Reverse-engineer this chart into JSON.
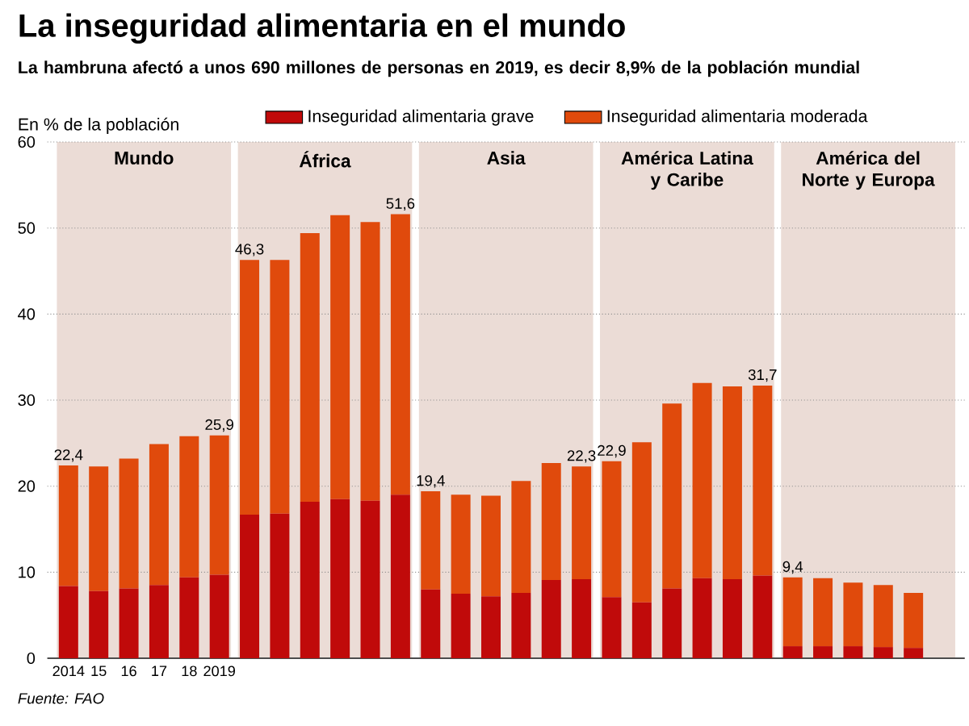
{
  "chart_data": {
    "type": "bar",
    "title": "La inseguridad alimentaria en el mundo",
    "subtitle": "La hambruna afectó a unos 690 millones de personas en 2019, es decir 8,9% de la población mundial",
    "ylabel": "En % de la población",
    "categories": [
      "2014",
      "15",
      "16",
      "17",
      "18",
      "2019",
      null,
      null,
      null,
      null,
      null,
      null,
      null,
      null,
      null,
      null,
      null,
      null,
      null,
      null,
      null,
      null,
      null,
      null,
      null,
      null,
      null,
      null,
      null,
      null
    ],
    "stacked": true,
    "ylim": [
      0,
      60
    ],
    "yticks": [
      0,
      10,
      20,
      30,
      40,
      50,
      60
    ],
    "grid": "y",
    "legend": "top",
    "series": [
      {
        "name": "Inseguridad alimentaria grave",
        "color": "#c00a0a",
        "values": [
          8.4,
          7.8,
          8.1,
          8.5,
          9.4,
          9.7,
          16.7,
          16.8,
          18.2,
          18.5,
          18.3,
          19.0,
          8.0,
          7.5,
          7.2,
          7.6,
          9.1,
          9.2,
          7.1,
          6.5,
          8.1,
          9.3,
          9.2,
          9.6,
          1.4,
          1.4,
          1.4,
          1.3,
          1.2,
          null
        ]
      },
      {
        "name": "Inseguridad alimentaria moderada",
        "color": "#e04a0c",
        "values": [
          14.0,
          14.5,
          15.1,
          16.4,
          16.4,
          16.2,
          29.6,
          29.5,
          31.2,
          33.0,
          32.4,
          32.6,
          11.4,
          11.5,
          11.7,
          13.0,
          13.6,
          13.1,
          15.8,
          18.6,
          21.5,
          22.7,
          22.4,
          22.1,
          8.0,
          7.9,
          7.4,
          7.2,
          6.4,
          null
        ]
      }
    ],
    "totals": [
      "22,4",
      null,
      null,
      null,
      null,
      "25,9",
      "46,3",
      null,
      null,
      null,
      null,
      "51,6",
      "19,4",
      null,
      null,
      null,
      null,
      "22,3",
      "22,9",
      null,
      null,
      null,
      null,
      "31,7",
      "9,4",
      null,
      null,
      null,
      null,
      null
    ],
    "annotations": [
      "Mundo",
      "África",
      "Asia",
      "América Latina y Caribe",
      "América del Norte y Europa",
      "Fuente: FAO"
    ]
  }
}
